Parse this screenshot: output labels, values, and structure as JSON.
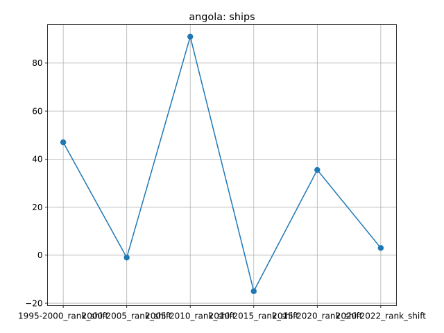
{
  "chart_data": {
    "type": "line",
    "title": "angola: ships",
    "xlabel": "",
    "ylabel": "",
    "categories": [
      "1995-2000_rank_shift",
      "2000-2005_rank_shift",
      "2005-2010_rank_shift",
      "2010-2015_rank_shift",
      "2015-2020_rank_shift",
      "2020-2022_rank_shift"
    ],
    "series": [
      {
        "values": [
          47,
          -1,
          91,
          -15,
          35.5,
          3
        ]
      }
    ],
    "ylim": [
      -21,
      96
    ],
    "yticks": [
      -20,
      0,
      20,
      40,
      60,
      80
    ],
    "grid": true,
    "legend": "none",
    "colors": {
      "line": "#1f77b4",
      "grid": "#b0b0b0",
      "axes": "#000000"
    }
  }
}
